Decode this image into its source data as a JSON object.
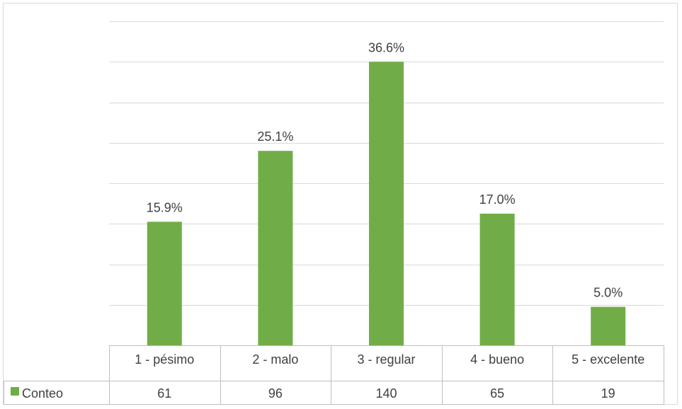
{
  "colors": {
    "bar": "#70ad47",
    "grid": "#d9d9d9",
    "text": "#404040",
    "table_border": "#bfbfbf"
  },
  "chart_data": {
    "type": "bar",
    "title": "",
    "xlabel": "",
    "ylabel": "",
    "categories": [
      "1 - pésimo",
      "2 - malo",
      "3 - regular",
      "4 - bueno",
      "5 - excelente"
    ],
    "series": [
      {
        "name": "Conteo",
        "values": [
          61,
          96,
          140,
          65,
          19
        ]
      }
    ],
    "data_labels": [
      "15.9%",
      "25.1%",
      "36.6%",
      "17.0%",
      "5.0%"
    ],
    "ylim": [
      0,
      160
    ],
    "grid": true,
    "legend": "data-table-left",
    "data_table": true
  }
}
